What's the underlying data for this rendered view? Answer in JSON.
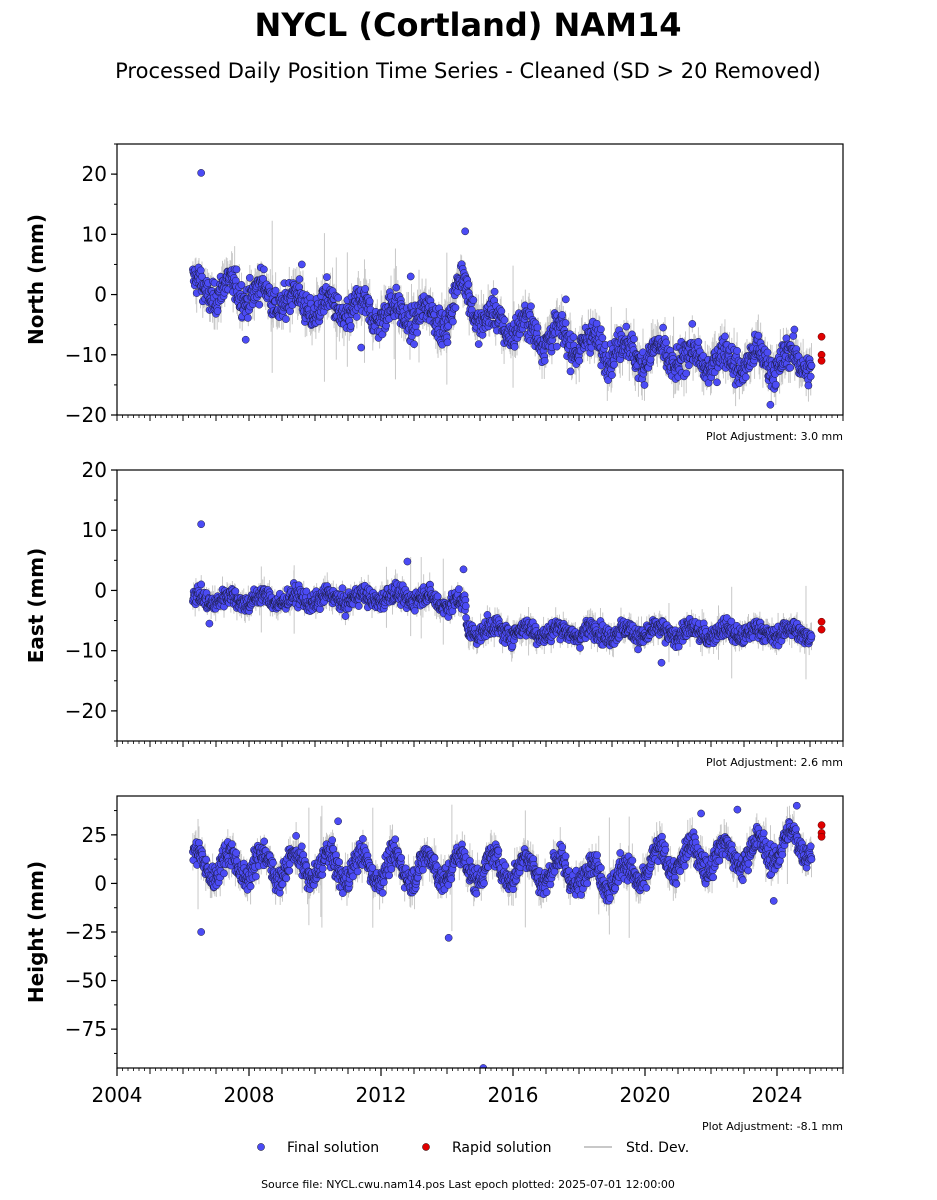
{
  "title": "NYCL (Cortland) NAM14",
  "subtitle": "Processed Daily Position Time Series - Cleaned (SD > 20 Removed)",
  "source_line": "Source file: NYCL.cwu.nam14.pos  Last epoch plotted: 2025-07-01 12:00:00",
  "legend": [
    {
      "label": "Final solution",
      "color": "#4b4bf5",
      "kind": "final"
    },
    {
      "label": "Rapid solution",
      "color": "#e00000",
      "kind": "rapid"
    },
    {
      "label": "Std. Dev.",
      "color": "#c8c8c8",
      "kind": "sd"
    }
  ],
  "colors": {
    "final": "#4b4bf5",
    "rapid": "#e00000",
    "std_dev": "#c8c8c8",
    "axis": "#000000"
  },
  "chart_data": {
    "type": "scatter",
    "xlim": [
      2004,
      2026
    ],
    "x_ticks": [
      2004,
      2008,
      2012,
      2016,
      2020,
      2024
    ],
    "x_tick_labels": [
      "2004",
      "2008",
      "2012",
      "2016",
      "2020",
      "2024"
    ],
    "panels": [
      {
        "ylabel": "North (mm)",
        "ylim": [
          -20,
          25
        ],
        "y_ticks": [
          20,
          10,
          0,
          -10,
          -20
        ],
        "adjustment": "Plot Adjustment: 3.0 mm",
        "trend": [
          [
            2006.3,
            1
          ],
          [
            2008,
            0.5
          ],
          [
            2010,
            -2
          ],
          [
            2012,
            -3
          ],
          [
            2014,
            -4
          ],
          [
            2014.5,
            2
          ],
          [
            2015,
            -4
          ],
          [
            2018,
            -8
          ],
          [
            2020,
            -10
          ],
          [
            2022,
            -11
          ],
          [
            2025,
            -11
          ]
        ],
        "noise": 2.2,
        "seasonal": 1.8,
        "outliers": [
          [
            2006.55,
            20.2
          ],
          [
            2014.55,
            10.5
          ],
          [
            2012.9,
            3
          ],
          [
            2009.6,
            5
          ],
          [
            2007.9,
            -7.5
          ],
          [
            2011.4,
            -8.8
          ],
          [
            2017.6,
            -0.8
          ],
          [
            2023.8,
            -18.3
          ]
        ],
        "rapid": [
          [
            2025.35,
            -7
          ],
          [
            2025.35,
            -10
          ],
          [
            2025.35,
            -11
          ]
        ]
      },
      {
        "ylabel": "East (mm)",
        "ylim": [
          -25,
          20
        ],
        "y_ticks": [
          20,
          10,
          0,
          -10,
          -20
        ],
        "adjustment": "Plot Adjustment: 2.6 mm",
        "trend": [
          [
            2006.3,
            -1.5
          ],
          [
            2010,
            -1.5
          ],
          [
            2013,
            -1
          ],
          [
            2014.55,
            -2.5
          ],
          [
            2014.6,
            -6.5
          ],
          [
            2018,
            -7
          ],
          [
            2022,
            -7
          ],
          [
            2025,
            -7
          ]
        ],
        "noise": 1.3,
        "seasonal": 0.8,
        "outliers": [
          [
            2006.55,
            11
          ],
          [
            2012.8,
            4.8
          ],
          [
            2014.5,
            3.5
          ],
          [
            2020.5,
            -12
          ],
          [
            2006.8,
            -5.5
          ]
        ],
        "rapid": [
          [
            2025.35,
            -5.2
          ],
          [
            2025.35,
            -6.5
          ]
        ]
      },
      {
        "ylabel": "Height (mm)",
        "ylim": [
          -95,
          45
        ],
        "y_ticks": [
          25,
          0,
          -25,
          -50,
          -75
        ],
        "adjustment": "Plot Adjustment: -8.1 mm",
        "trend": [
          [
            2006.3,
            10
          ],
          [
            2012,
            8
          ],
          [
            2016,
            8
          ],
          [
            2019.5,
            3
          ],
          [
            2020.5,
            12
          ],
          [
            2023,
            15
          ],
          [
            2025,
            22
          ]
        ],
        "noise": 5.5,
        "seasonal": 7,
        "outliers": [
          [
            2006.55,
            -25
          ],
          [
            2014.05,
            -28
          ],
          [
            2015.1,
            -95
          ],
          [
            2023.9,
            -9
          ],
          [
            2024.6,
            40
          ],
          [
            2022.8,
            38
          ],
          [
            2021.7,
            36
          ],
          [
            2010.7,
            32
          ]
        ],
        "rapid": [
          [
            2025.35,
            30
          ],
          [
            2025.35,
            26
          ],
          [
            2025.35,
            24
          ]
        ]
      }
    ],
    "series": [
      {
        "name": "Final solution"
      },
      {
        "name": "Rapid solution"
      },
      {
        "name": "Std. Dev."
      }
    ]
  }
}
